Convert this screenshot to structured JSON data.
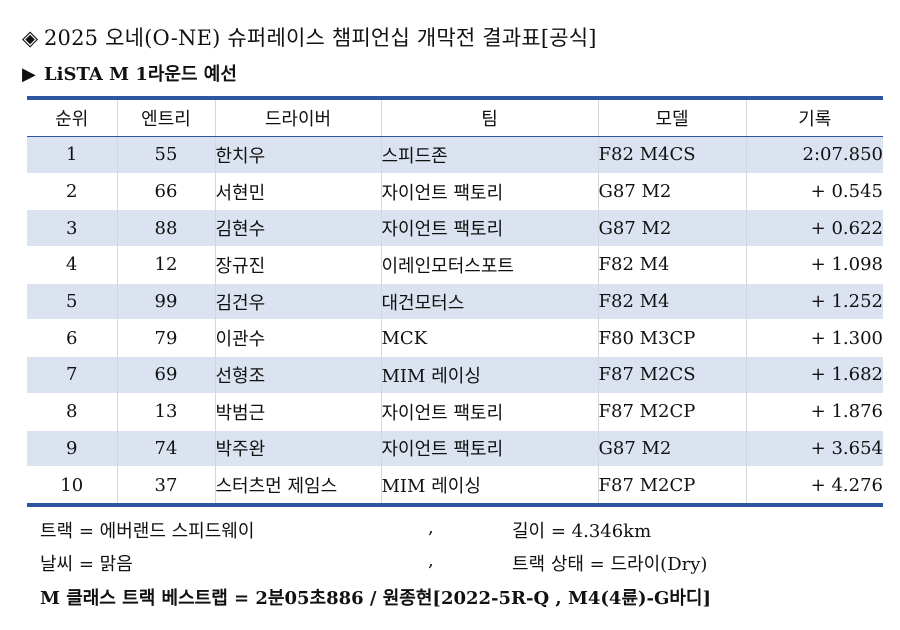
{
  "title": "2025 오네(O-NE) 슈퍼레이스 챔피언십 개막전 결과표[공식]",
  "subtitle": "LiSTA M 1라운드 예선",
  "table": {
    "headers": [
      "순위",
      "엔트리",
      "드라이버",
      "팀",
      "모델",
      "기록"
    ],
    "rows": [
      [
        "1",
        "55",
        "한치우",
        "스피드존",
        "F82 M4CS",
        "2:07.850"
      ],
      [
        "2",
        "66",
        "서현민",
        "자이언트 팩토리",
        "G87 M2",
        "+ 0.545"
      ],
      [
        "3",
        "88",
        "김현수",
        "자이언트 팩토리",
        "G87 M2",
        "+ 0.622"
      ],
      [
        "4",
        "12",
        "장규진",
        "이레인모터스포트",
        "F82 M4",
        "+ 1.098"
      ],
      [
        "5",
        "99",
        "김건우",
        "대건모터스",
        "F82 M4",
        "+ 1.252"
      ],
      [
        "6",
        "79",
        "이관수",
        "MCK",
        "F80 M3CP",
        "+ 1.300"
      ],
      [
        "7",
        "69",
        "선형조",
        "MIM 레이싱",
        "F87 M2CS",
        "+ 1.682"
      ],
      [
        "8",
        "13",
        "박범근",
        "자이언트 팩토리",
        "F87 M2CP",
        "+ 1.876"
      ],
      [
        "9",
        "74",
        "박주완",
        "자이언트 팩토리",
        "G87 M2",
        "+ 3.654"
      ],
      [
        "10",
        "37",
        "스터츠먼 제임스",
        "MIM 레이싱",
        "F87 M2CP",
        "+ 4.276"
      ]
    ]
  },
  "info": {
    "track": "트랙 = 에버랜드 스피드웨이",
    "length": "길이 = 4.346km",
    "weather": "날씨 = 맑음",
    "track_state": "트랙 상태 = 드라이(Dry)",
    "separator": ","
  },
  "best_lap": "M 클래스 트랙 베스트랩 = 2분05초886 / 원종현[2022-5R-Q , M4(4륜)-G바디]"
}
